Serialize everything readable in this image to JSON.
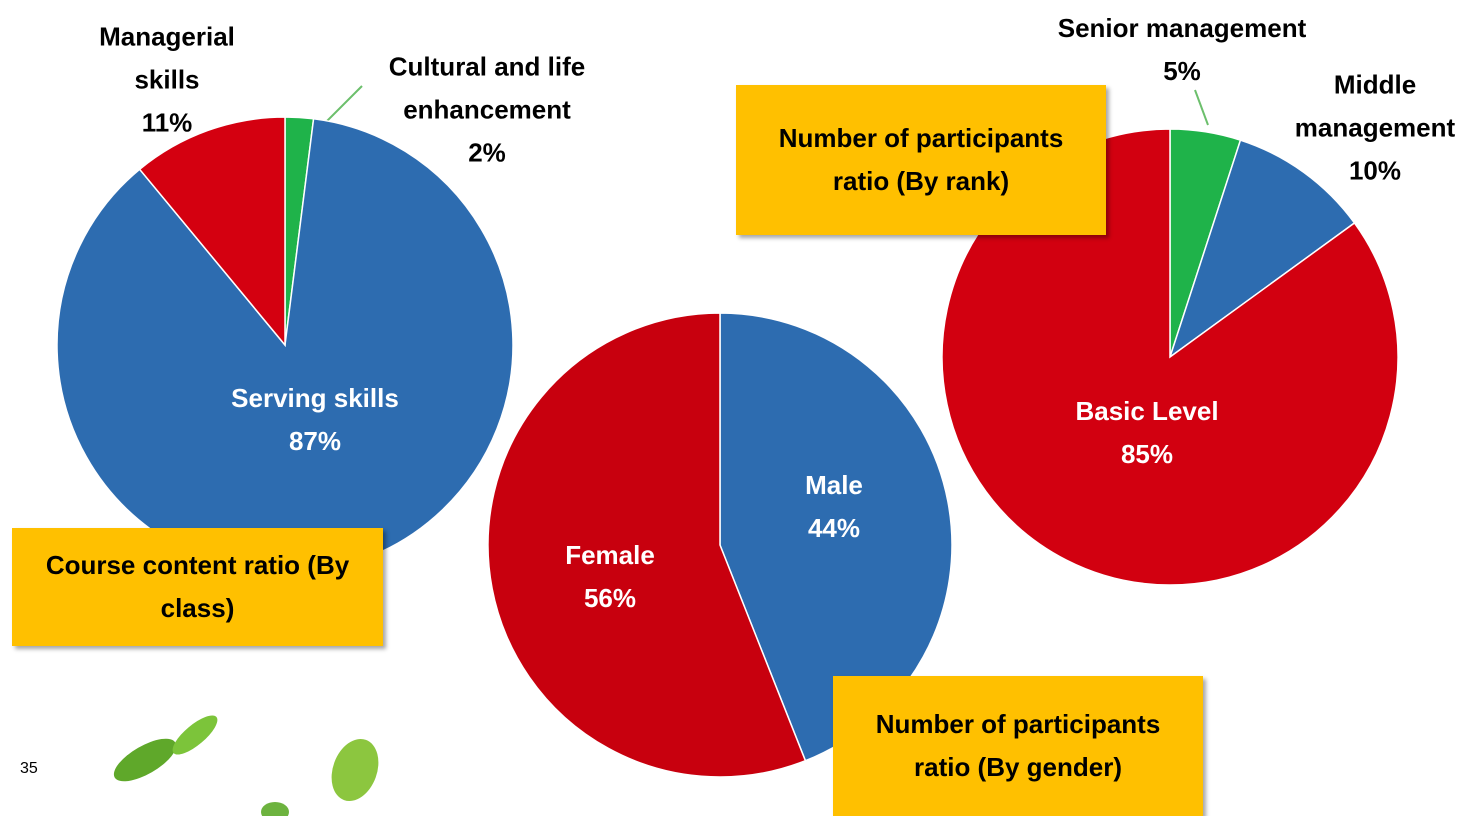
{
  "chart_data": [
    {
      "type": "pie",
      "title": "Course content ratio (By class)",
      "categories": [
        "Cultural and life enhancement",
        "Serving skills",
        "Managerial skills"
      ],
      "values": [
        2,
        87,
        11
      ],
      "value_labels": [
        "2%",
        "87%",
        "11%"
      ],
      "colors": [
        "#1fb34a",
        "#2d6cb0",
        "#d40010"
      ]
    },
    {
      "type": "pie",
      "title": "Number of participants ratio (By gender)",
      "categories": [
        "Male",
        "Female"
      ],
      "values": [
        44,
        56
      ],
      "value_labels": [
        "44%",
        "56%"
      ],
      "colors": [
        "#2d6cb0",
        "#c8000e"
      ]
    },
    {
      "type": "pie",
      "title": "Number of participants ratio (By rank)",
      "categories": [
        "Senior management",
        "Middle management",
        "Basic Level"
      ],
      "values": [
        5,
        10,
        85
      ],
      "value_labels": [
        "5%",
        "10%",
        "85%"
      ],
      "colors": [
        "#1fb34a",
        "#2d6cb0",
        "#d20010"
      ]
    }
  ],
  "page_number": "35"
}
